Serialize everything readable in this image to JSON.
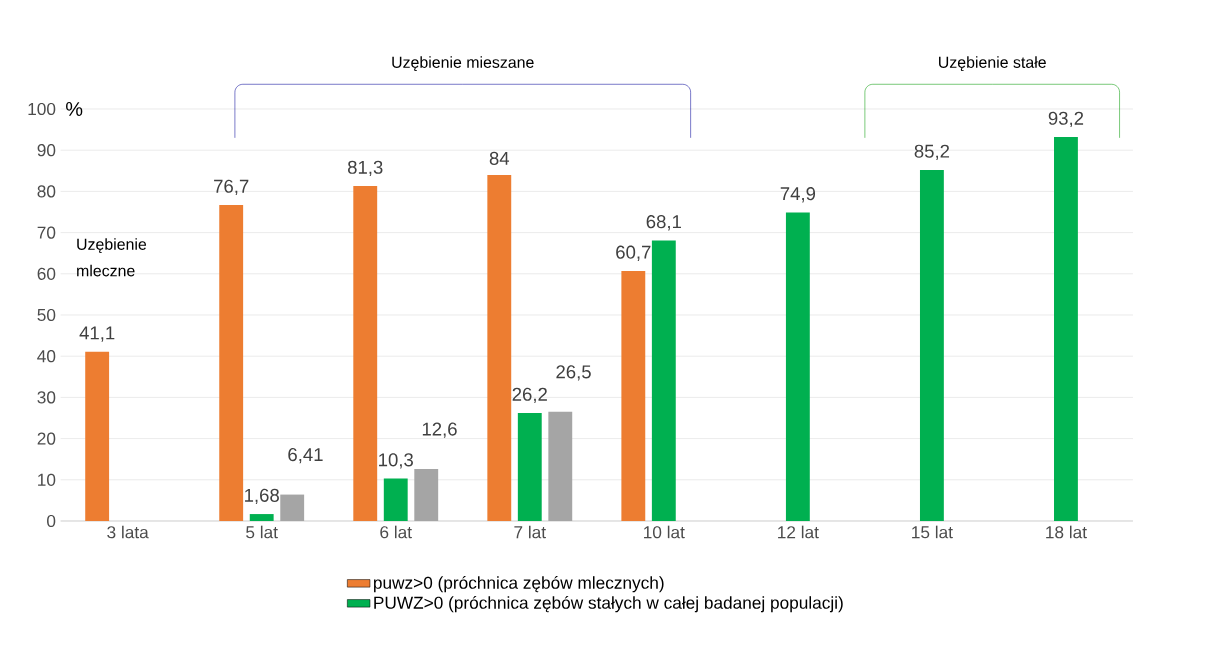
{
  "chart_data": {
    "type": "bar",
    "ylabel": "%",
    "categories": [
      "3 lata",
      "5 lat",
      "6 lat",
      "7 lat",
      "10 lat",
      "12 lat",
      "15 lat",
      "18 lat"
    ],
    "series": [
      {
        "name": "puwz>0 (próchnica zębów mlecznych)",
        "color": "#ed7d31",
        "values": [
          41.1,
          76.7,
          81.3,
          84,
          60.7,
          null,
          null,
          null
        ],
        "value_labels": [
          "41,1",
          "76,7",
          "81,3",
          "84",
          "60,7",
          null,
          null,
          null
        ]
      },
      {
        "name": "PUWZ>0 (próchnica zębów stałych w całej badanej populacji)",
        "color": "#00b050",
        "values": [
          null,
          1.68,
          10.3,
          26.2,
          68.1,
          74.9,
          85.2,
          93.2
        ],
        "value_labels": [
          null,
          "1,68",
          "10,3",
          "26,2",
          "68,1",
          "74,9",
          "85,2",
          "93,2"
        ]
      },
      {
        "color": "#a5a5a5",
        "values": [
          null,
          6.41,
          12.6,
          26.5,
          null,
          null,
          null,
          null
        ],
        "value_labels": [
          null,
          "6,41",
          "12,6",
          "26,5",
          null,
          null,
          null,
          null
        ]
      }
    ],
    "ylim": [
      0,
      100
    ],
    "yticks": [
      0,
      10,
      20,
      30,
      40,
      50,
      60,
      70,
      80,
      90,
      100
    ],
    "grid": "y",
    "legend": "bottom",
    "annotations": [
      "Uzębienie mieszane",
      "Uzębienie stałe",
      "Uzębienie mleczne"
    ]
  }
}
